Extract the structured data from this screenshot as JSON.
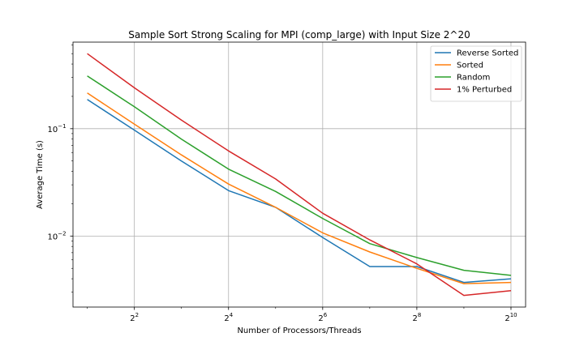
{
  "chart_data": {
    "type": "line",
    "title": "Sample Sort Strong Scaling for MPI (comp_large) with Input Size 2^20",
    "xlabel": "Number of Processors/Threads",
    "ylabel": "Average Time (s)",
    "xscale": "log2",
    "yscale": "log10",
    "grid": true,
    "legend_position": "top-right",
    "x": [
      2,
      4,
      8,
      16,
      32,
      64,
      128,
      256,
      512,
      1024
    ],
    "x_ticks": [
      {
        "value": 4,
        "base": "2",
        "exp": "2"
      },
      {
        "value": 16,
        "base": "2",
        "exp": "4"
      },
      {
        "value": 64,
        "base": "2",
        "exp": "6"
      },
      {
        "value": 256,
        "base": "2",
        "exp": "8"
      },
      {
        "value": 1024,
        "base": "2",
        "exp": "10"
      }
    ],
    "y_ticks": [
      {
        "value": 0.1,
        "base": "10",
        "exp": "−1"
      },
      {
        "value": 0.01,
        "base": "10",
        "exp": "−2"
      }
    ],
    "xlim": [
      1.62,
      1270
    ],
    "ylim": [
      0.00218,
      0.64
    ],
    "series": [
      {
        "name": "Reverse Sorted",
        "color": "#1f77b4",
        "values": [
          0.187,
          0.097,
          0.05,
          0.0265,
          0.0185,
          0.0097,
          0.0052,
          0.0052,
          0.0037,
          0.004
        ]
      },
      {
        "name": "Sorted",
        "color": "#ff7f0e",
        "values": [
          0.215,
          0.11,
          0.057,
          0.0305,
          0.0185,
          0.0107,
          0.0071,
          0.005,
          0.0036,
          0.0037
        ]
      },
      {
        "name": "Random",
        "color": "#2ca02c",
        "values": [
          0.31,
          0.16,
          0.08,
          0.042,
          0.026,
          0.0146,
          0.0085,
          0.0063,
          0.0048,
          0.0043
        ]
      },
      {
        "name": "1% Perturbed",
        "color": "#d62728",
        "values": [
          0.5,
          0.24,
          0.12,
          0.062,
          0.034,
          0.0163,
          0.0092,
          0.0055,
          0.0028,
          0.0031
        ]
      }
    ]
  }
}
